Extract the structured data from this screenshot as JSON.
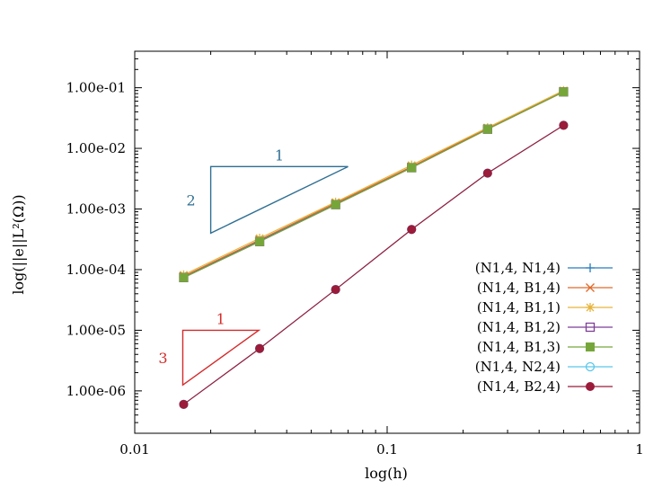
{
  "chart_data": {
    "type": "line",
    "xlabel": "log(h)",
    "ylabel": "log(||e||L²(Ω))",
    "x_scale": "log",
    "y_scale": "log",
    "xlim": [
      0.01,
      1
    ],
    "ylim": [
      2e-07,
      0.4
    ],
    "x_ticks": [
      {
        "value": 0.01,
        "label": "0.01"
      },
      {
        "value": 0.1,
        "label": "0.1"
      },
      {
        "value": 1,
        "label": "1"
      }
    ],
    "y_ticks": [
      {
        "value": 0.1,
        "label": "1.00e-01"
      },
      {
        "value": 0.01,
        "label": "1.00e-02"
      },
      {
        "value": 0.001,
        "label": "1.00e-03"
      },
      {
        "value": 0.0001,
        "label": "1.00e-04"
      },
      {
        "value": 1e-05,
        "label": "1.00e-05"
      },
      {
        "value": 1e-06,
        "label": "1.00e-06"
      }
    ],
    "grid": false,
    "legend_position": "bottom-right",
    "x": [
      0.015625,
      0.03125,
      0.0625,
      0.125,
      0.25,
      0.5
    ],
    "series": [
      {
        "name": "(N1,4, N1,4)",
        "marker": "plus",
        "color": "#2a7bbd",
        "values": [
          7.6e-05,
          0.0003,
          0.0012,
          0.0049,
          0.021,
          0.086
        ]
      },
      {
        "name": "(N1,4, B1,4)",
        "marker": "x",
        "color": "#e06a2a",
        "values": [
          7.8e-05,
          0.00031,
          0.00125,
          0.005,
          0.0215,
          0.088
        ]
      },
      {
        "name": "(N1,4, B1,1)",
        "marker": "star",
        "color": "#e6b43c",
        "values": [
          8.2e-05,
          0.00033,
          0.0013,
          0.0053,
          0.022,
          0.09
        ]
      },
      {
        "name": "(N1,4, B1,2)",
        "marker": "square-open",
        "color": "#7e3f98",
        "values": [
          7.4e-05,
          0.00029,
          0.00118,
          0.0048,
          0.0207,
          0.0855
        ]
      },
      {
        "name": "(N1,4, B1,3)",
        "marker": "square-filled",
        "color": "#76a63a",
        "values": [
          7.4e-05,
          0.00029,
          0.00118,
          0.0048,
          0.0207,
          0.0855
        ]
      },
      {
        "name": "(N1,4, N2,4)",
        "marker": "circle-open",
        "color": "#5ac8ea",
        "values": [
          6e-07,
          5e-06,
          4.7e-05,
          0.00046,
          0.0039,
          0.024
        ]
      },
      {
        "name": "(N1,4, B2,4)",
        "marker": "circle-filled",
        "color": "#9b1b3a",
        "values": [
          6e-07,
          5e-06,
          4.7e-05,
          0.00046,
          0.0039,
          0.024
        ]
      }
    ],
    "slope_triangles": [
      {
        "color": "#2f6f93",
        "x0": 0.02,
        "x1": 0.07,
        "y_top": 0.005,
        "y_bottom": 0.0004,
        "run_label": "1",
        "rise_label": "2"
      },
      {
        "color": "#d42a2a",
        "x0": 0.0155,
        "x1": 0.031,
        "y_top": 1e-05,
        "y_bottom": 1.25e-06,
        "run_label": "1",
        "rise_label": "3"
      }
    ]
  }
}
